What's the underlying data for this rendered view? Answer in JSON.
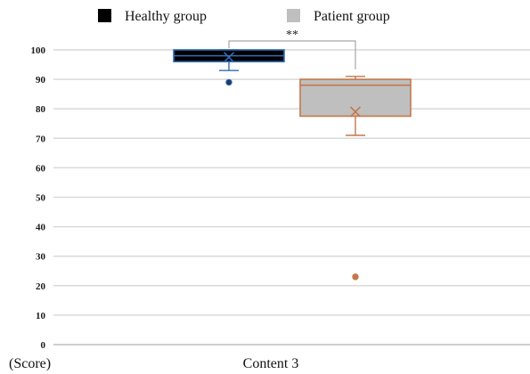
{
  "chart_data": {
    "type": "box",
    "title": "",
    "xlabel": "",
    "ylabel": "(Score)",
    "categories": [
      "Content 3"
    ],
    "ylim": [
      0,
      100
    ],
    "yticks": [
      0,
      10,
      20,
      30,
      40,
      50,
      60,
      70,
      80,
      90,
      100
    ],
    "grid": true,
    "legend_position": "top",
    "significance": "**",
    "series": [
      {
        "name": "Healthy group",
        "fill": "#000000",
        "edge": "#2f6eb5",
        "min": 93,
        "q1": 96,
        "median": 98,
        "q3": 100,
        "max": 100,
        "mean": 97.5,
        "outliers": [
          89
        ]
      },
      {
        "name": "Patient group",
        "fill": "#bfbfbf",
        "edge": "#c5774b",
        "min": 71,
        "q1": 77.5,
        "median": 88,
        "q3": 90,
        "max": 91,
        "mean": 79,
        "outliers": [
          23
        ]
      }
    ]
  }
}
